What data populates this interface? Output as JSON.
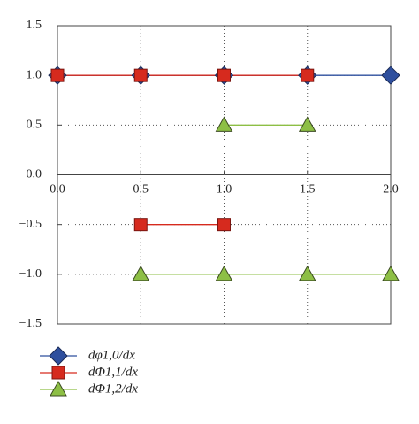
{
  "chart_data": {
    "type": "line",
    "xlim": [
      0,
      2
    ],
    "xticks": [
      {
        "value": 0,
        "label": "0.0"
      },
      {
        "value": 0.5,
        "label": "0.5"
      },
      {
        "value": 1,
        "label": "1.0"
      },
      {
        "value": 1.5,
        "label": "1.5"
      },
      {
        "value": 2,
        "label": "2.0"
      }
    ],
    "ylim": [
      -1.5,
      1.5
    ],
    "yticks": [
      {
        "value": -1.5,
        "label": "−1.5"
      },
      {
        "value": -1,
        "label": "−1.0"
      },
      {
        "value": -0.5,
        "label": "−0.5"
      },
      {
        "value": 0,
        "label": "0.0"
      },
      {
        "value": 0.5,
        "label": "0.5"
      },
      {
        "value": 1,
        "label": "1.0"
      },
      {
        "value": 1.5,
        "label": "1.5"
      }
    ],
    "grid": true,
    "series": [
      {
        "name": "dφ1,0/dx",
        "color": "#2e4f9e",
        "marker": "diamond",
        "x": [
          0,
          0.5,
          1,
          1.5,
          2
        ],
        "values": [
          1,
          1,
          1,
          1,
          1
        ]
      },
      {
        "name": "dΦ1,1/dx",
        "color": "#d62a1e",
        "marker": "square",
        "x": [
          0,
          0.5,
          1,
          1.5,
          null,
          0.5,
          1
        ],
        "values": [
          1,
          1,
          1,
          1,
          null,
          -0.5,
          -0.5
        ]
      },
      {
        "name": "dΦ1,2/dx",
        "color": "#8dbf45",
        "marker": "triangle",
        "x": [
          1,
          1.5,
          null,
          0.5,
          1,
          1.5,
          2
        ],
        "values": [
          0.5,
          0.5,
          null,
          -1,
          -1,
          -1,
          -1
        ]
      }
    ]
  }
}
